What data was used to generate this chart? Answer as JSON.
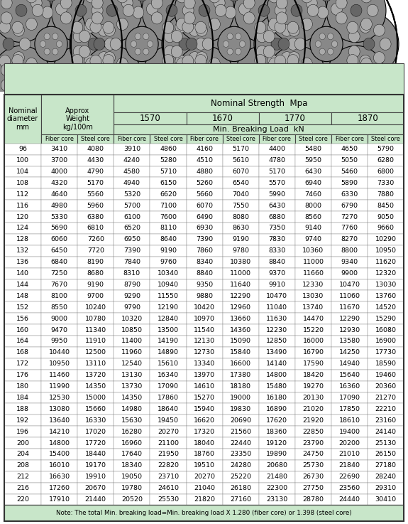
{
  "title_images": [
    "8×65FNS＋IWRC",
    "8×80WSNS＋IWRC",
    "8×84WSNS＋IWRC",
    "8×111SWSNS＋IWRC"
  ],
  "header_nominal_strength": "Nominal Strength  Mpa",
  "header_min_breaking": "Min. Breaking Load  kN",
  "col_nominal_diameter": "Nominal\ndiameter\nmm",
  "col_approx_weight": "Approx\nWeight\nkg/100m",
  "strengths": [
    "1570",
    "1670",
    "1770",
    "1870"
  ],
  "sub_cols": [
    "Fiber core",
    "Steel core"
  ],
  "note": "Note: The total Min. breaking load=Min. breaking load X 1.280 (fiber core) or 1.398 (steel core)",
  "header_bg": "#c8e6c9",
  "rows": [
    [
      96,
      3410,
      4080,
      3910,
      4860,
      4160,
      5170,
      4400,
      5480,
      4650,
      5790
    ],
    [
      100,
      3700,
      4430,
      4240,
      5280,
      4510,
      5610,
      4780,
      5950,
      5050,
      6280
    ],
    [
      104,
      4000,
      4790,
      4580,
      5710,
      4880,
      6070,
      5170,
      6430,
      5460,
      6800
    ],
    [
      108,
      4320,
      5170,
      4940,
      6150,
      5260,
      6540,
      5570,
      6940,
      5890,
      7330
    ],
    [
      112,
      4640,
      5560,
      5320,
      6620,
      5660,
      7040,
      5990,
      7460,
      6330,
      7880
    ],
    [
      116,
      4980,
      5960,
      5700,
      7100,
      6070,
      7550,
      6430,
      8000,
      6790,
      8450
    ],
    [
      120,
      5330,
      6380,
      6100,
      7600,
      6490,
      8080,
      6880,
      8560,
      7270,
      9050
    ],
    [
      124,
      5690,
      6810,
      6520,
      8110,
      6930,
      8630,
      7350,
      9140,
      7760,
      9660
    ],
    [
      128,
      6060,
      7260,
      6950,
      8640,
      7390,
      9190,
      7830,
      9740,
      8270,
      10290
    ],
    [
      132,
      6450,
      7720,
      7390,
      9190,
      7860,
      9780,
      8330,
      10360,
      8800,
      10950
    ],
    [
      136,
      6840,
      8190,
      7840,
      9760,
      8340,
      10380,
      8840,
      11000,
      9340,
      11620
    ],
    [
      140,
      7250,
      8680,
      8310,
      10340,
      8840,
      11000,
      9370,
      11660,
      9900,
      12320
    ],
    [
      144,
      7670,
      9190,
      8790,
      10940,
      9350,
      11640,
      9910,
      12330,
      10470,
      13030
    ],
    [
      148,
      8100,
      9700,
      9290,
      11550,
      9880,
      12290,
      10470,
      13030,
      11060,
      13760
    ],
    [
      152,
      8550,
      10240,
      9790,
      12190,
      10420,
      12960,
      11040,
      13740,
      11670,
      14520
    ],
    [
      156,
      9000,
      10780,
      10320,
      12840,
      10970,
      13660,
      11630,
      14470,
      12290,
      15290
    ],
    [
      160,
      9470,
      11340,
      10850,
      13500,
      11540,
      14360,
      12230,
      15220,
      12930,
      16080
    ],
    [
      164,
      9950,
      11910,
      11400,
      14190,
      12130,
      15090,
      12850,
      16000,
      13580,
      16900
    ],
    [
      168,
      10440,
      12500,
      11960,
      14890,
      12730,
      15840,
      13490,
      16790,
      14250,
      17730
    ],
    [
      172,
      10950,
      13110,
      12540,
      15610,
      13340,
      16600,
      14140,
      17590,
      14940,
      18590
    ],
    [
      176,
      11460,
      13720,
      13130,
      16340,
      13970,
      17380,
      14800,
      18420,
      15640,
      19460
    ],
    [
      180,
      11990,
      14350,
      13730,
      17090,
      14610,
      18180,
      15480,
      19270,
      16360,
      20360
    ],
    [
      184,
      12530,
      15000,
      14350,
      17860,
      15270,
      19000,
      16180,
      20130,
      17090,
      21270
    ],
    [
      188,
      13080,
      15660,
      14980,
      18640,
      15940,
      19830,
      16890,
      21020,
      17850,
      22210
    ],
    [
      192,
      13640,
      16330,
      15630,
      19450,
      16620,
      20690,
      17620,
      21920,
      18610,
      23160
    ],
    [
      196,
      14210,
      17020,
      16280,
      20270,
      17320,
      21560,
      18360,
      22850,
      19400,
      24140
    ],
    [
      200,
      14800,
      17720,
      16960,
      21100,
      18040,
      22440,
      19120,
      23790,
      20200,
      25130
    ],
    [
      204,
      15400,
      18440,
      17640,
      21950,
      18760,
      23350,
      19890,
      24750,
      21010,
      26150
    ],
    [
      208,
      16010,
      19170,
      18340,
      22820,
      19510,
      24280,
      20680,
      25730,
      21840,
      27180
    ],
    [
      212,
      16630,
      19910,
      19050,
      23710,
      20270,
      25220,
      21480,
      26730,
      22690,
      28240
    ],
    [
      216,
      17260,
      20670,
      19780,
      24610,
      21040,
      26180,
      22300,
      27750,
      23560,
      29310
    ],
    [
      220,
      17910,
      21440,
      20520,
      25530,
      21820,
      27160,
      23130,
      28780,
      24440,
      30410
    ]
  ]
}
